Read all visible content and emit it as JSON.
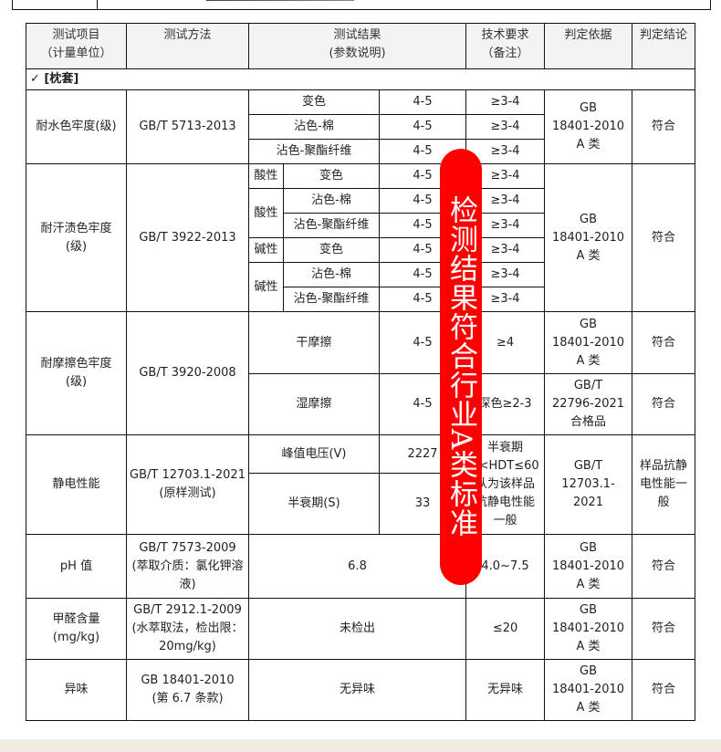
{
  "headers": [
    "测试项目\n（计量单位）",
    "测试方法",
    "测试结果\n(参数说明)",
    "技术要求\n（备注）",
    "判定依据",
    "判定结论"
  ],
  "section": "✓   [枕套]",
  "water": {
    "item": "耐水色牢度(级)",
    "method": "GB/T 5713-2013",
    "rows": [
      [
        "变色",
        "4-5",
        "≥3-4"
      ],
      [
        "沾色-棉",
        "4-5",
        "≥3-4"
      ],
      [
        "沾色-聚酯纤维",
        "4-5",
        "≥3-4"
      ]
    ],
    "basis": "GB\n18401-2010\nA 类",
    "conclusion": "符合"
  },
  "sweat": {
    "item": "耐汗渍色牢度\n(级)",
    "method": "GB/T 3922-2013",
    "acid": "酸性",
    "alkali": "碱性",
    "rows": [
      [
        "变色",
        "4-5",
        "≥3-4"
      ],
      [
        "沾色-棉",
        "4-5",
        "≥3-4"
      ],
      [
        "沾色-聚酯纤维",
        "4-5",
        "≥3-4"
      ],
      [
        "变色",
        "4-5",
        "≥3-4"
      ],
      [
        "沾色-棉",
        "4-5",
        "≥3-4"
      ],
      [
        "沾色-聚酯纤维",
        "4-5",
        "≥3-4"
      ]
    ],
    "basis": "GB\n18401-2010\nA 类",
    "conclusion": "符合"
  },
  "rub": {
    "item": "耐摩擦色牢度\n(级)",
    "method": "GB/T 3920-2008",
    "dry": [
      "干摩擦",
      "4-5",
      "≥4",
      "GB\n18401-2010\nA 类",
      "符合"
    ],
    "wet": [
      "湿摩擦",
      "4-5",
      "深色≥2-3",
      "GB/T\n22796-2021\n合格品",
      "符合"
    ]
  },
  "static": {
    "item": "静电性能",
    "method": "GB/T 12703.1-2021\n(原样测试)",
    "peak": [
      "峰值电压(V)",
      "2227"
    ],
    "half": [
      "半衰期(S)",
      "33"
    ],
    "req": "半衰期\n0<HDT≤60\n认为该样品\n抗静电性能\n一般",
    "basis": "GB/T\n12703.1-2021",
    "conclusion": "样品抗静\n电性能一\n般"
  },
  "ph": {
    "item": "pH 值",
    "method": "GB/T 7573-2009\n(萃取介质：氯化钾溶\n液)",
    "result": "6.8",
    "req": "4.0~7.5",
    "basis": "GB\n18401-2010\nA 类",
    "conclusion": "符合"
  },
  "formaldehyde": {
    "item": "甲醛含量\n(mg/kg)",
    "method": "GB/T 2912.1-2009\n(水萃取法，检出限：\n20mg/kg)",
    "result": "未检出",
    "req": "≤20",
    "basis": "GB\n18401-2010\nA 类",
    "conclusion": "符合"
  },
  "odor": {
    "item": "异味",
    "method": "GB 18401-2010\n(第 6.7 条款)",
    "result": "无异味",
    "req": "无异味",
    "basis": "GB\n18401-2010\nA 类",
    "conclusion": "符合"
  },
  "stamp": "检测结果符合行业A类标准"
}
